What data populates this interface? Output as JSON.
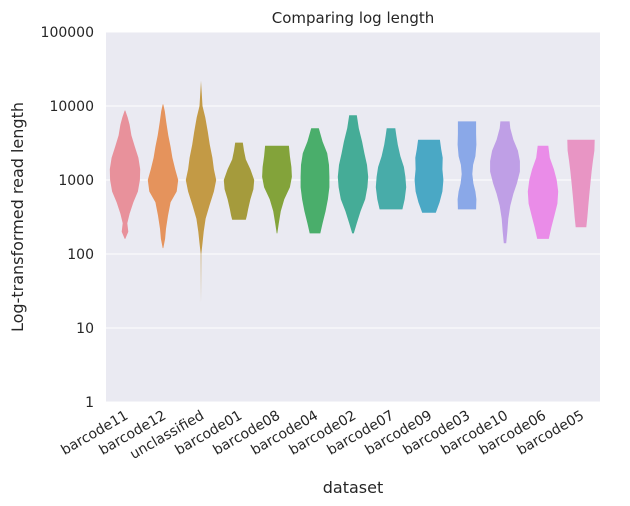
{
  "chart_data": {
    "type": "violin",
    "title": "Comparing log length",
    "xlabel": "dataset",
    "ylabel": "Log-transformed read length",
    "yscale": "log",
    "ylim": [
      1,
      100000
    ],
    "yticks": [
      1,
      10,
      100,
      1000,
      10000,
      100000
    ],
    "ytick_labels": [
      "1",
      "10",
      "100",
      "1000",
      "10000",
      "100000"
    ],
    "grid": true,
    "categories": [
      "barcode11",
      "barcode12",
      "unclassified",
      "barcode01",
      "barcode08",
      "barcode04",
      "barcode02",
      "barcode07",
      "barcode09",
      "barcode03",
      "barcode10",
      "barcode06",
      "barcode05"
    ],
    "series": [
      {
        "category": "barcode11",
        "color": "#e8919b",
        "min": 160,
        "max": 8700,
        "profile": [
          [
            160,
            0.02
          ],
          [
            200,
            0.22
          ],
          [
            260,
            0.15
          ],
          [
            350,
            0.3
          ],
          [
            500,
            0.55
          ],
          [
            700,
            0.85
          ],
          [
            1000,
            0.98
          ],
          [
            1400,
            1.0
          ],
          [
            2000,
            0.88
          ],
          [
            2800,
            0.65
          ],
          [
            4000,
            0.42
          ],
          [
            5600,
            0.3
          ],
          [
            7000,
            0.18
          ],
          [
            8700,
            0.02
          ]
        ]
      },
      {
        "category": "barcode12",
        "color": "#e5935c",
        "min": 120,
        "max": 10500,
        "profile": [
          [
            120,
            0.02
          ],
          [
            160,
            0.14
          ],
          [
            220,
            0.2
          ],
          [
            330,
            0.33
          ],
          [
            500,
            0.5
          ],
          [
            700,
            0.9
          ],
          [
            1000,
            1.0
          ],
          [
            1400,
            0.8
          ],
          [
            2000,
            0.62
          ],
          [
            2800,
            0.5
          ],
          [
            4000,
            0.35
          ],
          [
            6000,
            0.22
          ],
          [
            8500,
            0.12
          ],
          [
            10500,
            0.02
          ]
        ]
      },
      {
        "category": "unclassified",
        "color": "#c39a45",
        "min": 22,
        "max": 22000,
        "profile": [
          [
            22,
            0.0
          ],
          [
            100,
            0.02
          ],
          [
            140,
            0.1
          ],
          [
            200,
            0.18
          ],
          [
            300,
            0.3
          ],
          [
            450,
            0.55
          ],
          [
            700,
            0.85
          ],
          [
            1000,
            1.0
          ],
          [
            1400,
            0.85
          ],
          [
            2000,
            0.75
          ],
          [
            3000,
            0.58
          ],
          [
            4500,
            0.45
          ],
          [
            7000,
            0.28
          ],
          [
            10000,
            0.1
          ],
          [
            22000,
            0.0
          ]
        ]
      },
      {
        "category": "barcode01",
        "color": "#a59b3c",
        "min": 290,
        "max": 3200,
        "profile": [
          [
            290,
            0.45
          ],
          [
            330,
            0.52
          ],
          [
            400,
            0.6
          ],
          [
            550,
            0.75
          ],
          [
            750,
            0.95
          ],
          [
            1000,
            1.0
          ],
          [
            1400,
            0.75
          ],
          [
            1900,
            0.45
          ],
          [
            2500,
            0.33
          ],
          [
            3200,
            0.25
          ]
        ]
      },
      {
        "category": "barcode08",
        "color": "#83a33a",
        "min": 190,
        "max": 2900,
        "profile": [
          [
            190,
            0.02
          ],
          [
            260,
            0.12
          ],
          [
            380,
            0.25
          ],
          [
            550,
            0.48
          ],
          [
            800,
            0.85
          ],
          [
            1100,
            0.98
          ],
          [
            1500,
            0.95
          ],
          [
            2100,
            0.85
          ],
          [
            2900,
            0.78
          ]
        ]
      },
      {
        "category": "barcode04",
        "color": "#4aae6b",
        "min": 190,
        "max": 5000,
        "profile": [
          [
            190,
            0.35
          ],
          [
            260,
            0.5
          ],
          [
            380,
            0.7
          ],
          [
            550,
            0.85
          ],
          [
            800,
            0.95
          ],
          [
            1100,
            0.95
          ],
          [
            1600,
            0.92
          ],
          [
            2300,
            0.8
          ],
          [
            3300,
            0.5
          ],
          [
            5000,
            0.25
          ]
        ]
      },
      {
        "category": "barcode02",
        "color": "#45ac97",
        "min": 190,
        "max": 7500,
        "profile": [
          [
            190,
            0.05
          ],
          [
            260,
            0.25
          ],
          [
            380,
            0.5
          ],
          [
            550,
            0.8
          ],
          [
            800,
            0.95
          ],
          [
            1100,
            1.0
          ],
          [
            1600,
            0.92
          ],
          [
            2300,
            0.75
          ],
          [
            3300,
            0.6
          ],
          [
            5000,
            0.38
          ],
          [
            7500,
            0.25
          ]
        ]
      },
      {
        "category": "barcode07",
        "color": "#48aca9",
        "min": 400,
        "max": 5000,
        "profile": [
          [
            400,
            0.75
          ],
          [
            550,
            0.9
          ],
          [
            800,
            1.0
          ],
          [
            1100,
            0.95
          ],
          [
            1500,
            0.85
          ],
          [
            2100,
            0.62
          ],
          [
            3000,
            0.45
          ],
          [
            4000,
            0.35
          ],
          [
            5000,
            0.28
          ]
        ]
      },
      {
        "category": "barcode09",
        "color": "#4aa8c5",
        "min": 360,
        "max": 3500,
        "profile": [
          [
            360,
            0.45
          ],
          [
            500,
            0.7
          ],
          [
            700,
            0.88
          ],
          [
            1000,
            0.95
          ],
          [
            1400,
            0.88
          ],
          [
            2000,
            0.9
          ],
          [
            2600,
            0.8
          ],
          [
            3500,
            0.72
          ]
        ]
      },
      {
        "category": "barcode03",
        "color": "#8aa8e8",
        "min": 400,
        "max": 6200,
        "profile": [
          [
            400,
            0.6
          ],
          [
            550,
            0.62
          ],
          [
            700,
            0.55
          ],
          [
            900,
            0.42
          ],
          [
            1200,
            0.35
          ],
          [
            1600,
            0.4
          ],
          [
            2100,
            0.55
          ],
          [
            3000,
            0.62
          ],
          [
            4200,
            0.6
          ],
          [
            6200,
            0.6
          ]
        ]
      },
      {
        "category": "barcode10",
        "color": "#bf9fe6",
        "min": 140,
        "max": 6200,
        "profile": [
          [
            140,
            0.08
          ],
          [
            200,
            0.15
          ],
          [
            300,
            0.22
          ],
          [
            450,
            0.35
          ],
          [
            650,
            0.55
          ],
          [
            900,
            0.78
          ],
          [
            1300,
            0.98
          ],
          [
            1800,
            0.98
          ],
          [
            2500,
            0.85
          ],
          [
            3500,
            0.55
          ],
          [
            5000,
            0.35
          ],
          [
            6200,
            0.3
          ]
        ]
      },
      {
        "category": "barcode06",
        "color": "#ea8ce8",
        "min": 160,
        "max": 2900,
        "profile": [
          [
            160,
            0.38
          ],
          [
            230,
            0.55
          ],
          [
            330,
            0.75
          ],
          [
            480,
            0.95
          ],
          [
            700,
            1.0
          ],
          [
            1000,
            0.9
          ],
          [
            1400,
            0.72
          ],
          [
            2000,
            0.45
          ],
          [
            2900,
            0.35
          ]
        ]
      },
      {
        "category": "barcode05",
        "color": "#e895c4",
        "min": 230,
        "max": 3500,
        "profile": [
          [
            230,
            0.35
          ],
          [
            320,
            0.42
          ],
          [
            450,
            0.48
          ],
          [
            650,
            0.55
          ],
          [
            900,
            0.62
          ],
          [
            1300,
            0.7
          ],
          [
            1800,
            0.78
          ],
          [
            2500,
            0.88
          ],
          [
            3500,
            0.9
          ]
        ]
      }
    ]
  }
}
